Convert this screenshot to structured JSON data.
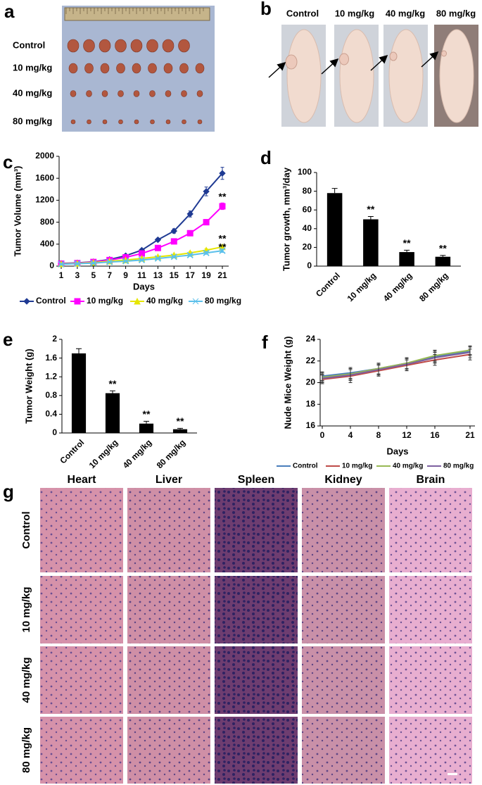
{
  "panel_a": {
    "label": "a",
    "rows": [
      "Control",
      "10 mg/kg",
      "40 mg/kg",
      "80 mg/kg"
    ]
  },
  "panel_b": {
    "label": "b",
    "columns": [
      "Control",
      "10 mg/kg",
      "40 mg/kg",
      "80 mg/kg"
    ]
  },
  "chart_data": [
    {
      "panel": "c",
      "type": "line",
      "x_label": "Days",
      "y_label": "Tumor Volume (mm³)",
      "legend": "bottom",
      "x": [
        1,
        3,
        5,
        7,
        9,
        11,
        13,
        15,
        17,
        19,
        21
      ],
      "xlim": [
        1,
        21
      ],
      "xticks": [
        1,
        3,
        5,
        7,
        9,
        11,
        13,
        15,
        17,
        19,
        21
      ],
      "ylim": [
        0,
        2000
      ],
      "yticks": [
        0,
        400,
        800,
        1200,
        1600,
        2000
      ],
      "series": [
        {
          "name": "Control",
          "color": "#1f3a93",
          "marker": "diamond",
          "values": [
            50,
            60,
            80,
            120,
            190,
            290,
            480,
            640,
            950,
            1360,
            1690
          ],
          "errors": [
            8,
            8,
            10,
            12,
            18,
            22,
            28,
            40,
            55,
            80,
            110
          ]
        },
        {
          "name": "10 mg/kg",
          "color": "#ff00ff",
          "marker": "square",
          "values": [
            45,
            55,
            75,
            110,
            160,
            230,
            330,
            450,
            600,
            800,
            1090
          ],
          "errors": [
            6,
            6,
            8,
            10,
            14,
            18,
            22,
            30,
            40,
            50,
            60
          ],
          "significance": "**"
        },
        {
          "name": "40 mg/kg",
          "color": "#e6e600",
          "marker": "triangle",
          "values": [
            40,
            50,
            65,
            90,
            110,
            140,
            170,
            200,
            240,
            290,
            350
          ],
          "errors": [
            5,
            5,
            6,
            8,
            10,
            12,
            15,
            18,
            22,
            28,
            35
          ],
          "significance": "**"
        },
        {
          "name": "80 mg/kg",
          "color": "#5bc0eb",
          "marker": "cross",
          "values": [
            35,
            45,
            55,
            75,
            90,
            110,
            140,
            170,
            200,
            240,
            280
          ],
          "errors": [
            5,
            5,
            6,
            8,
            10,
            12,
            15,
            18,
            22,
            26,
            30
          ],
          "significance": "**"
        }
      ]
    },
    {
      "panel": "d",
      "type": "bar",
      "y_label": "Tumor growth, mm³/day",
      "color": "#000000",
      "categories": [
        "Control",
        "10 mg/kg",
        "40 mg/kg",
        "80 mg/kg"
      ],
      "values": [
        78,
        50,
        15,
        10
      ],
      "errors": [
        5,
        3,
        2,
        1.5
      ],
      "significance": [
        null,
        "**",
        "**",
        "**"
      ],
      "ylim": [
        0,
        100
      ],
      "yticks": [
        0,
        20,
        40,
        60,
        80,
        100
      ]
    },
    {
      "panel": "e",
      "type": "bar",
      "y_label": "Tumor Weight  (g)",
      "color": "#000000",
      "categories": [
        "Control",
        "10 mg/kg",
        "40 mg/kg",
        "80 mg/kg"
      ],
      "values": [
        1.7,
        0.85,
        0.2,
        0.08
      ],
      "errors": [
        0.1,
        0.05,
        0.05,
        0.02
      ],
      "significance": [
        null,
        "**",
        "**",
        "**"
      ],
      "ylim": [
        0,
        2
      ],
      "yticks": [
        0,
        0.4,
        0.8,
        1.2,
        1.6,
        2
      ]
    },
    {
      "panel": "f",
      "type": "line",
      "x_label": "Days",
      "y_label": "Nude Mice Weight (g)",
      "legend": "bottom",
      "x": [
        0,
        4,
        8,
        12,
        16,
        21
      ],
      "xlim": [
        0,
        21
      ],
      "xticks": [
        0,
        4,
        8,
        12,
        16,
        21
      ],
      "ylim": [
        16,
        24
      ],
      "yticks": [
        16,
        18,
        20,
        22,
        24
      ],
      "series": [
        {
          "name": "Control",
          "color": "#4a7ebb",
          "values": [
            20.6,
            20.9,
            21.3,
            21.8,
            22.4,
            22.9
          ],
          "errors": [
            0.4,
            0.5,
            0.5,
            0.5,
            0.5,
            0.4
          ]
        },
        {
          "name": "10 mg/kg",
          "color": "#be4b48",
          "values": [
            20.3,
            20.6,
            21.1,
            21.6,
            22.1,
            22.6
          ],
          "errors": [
            0.4,
            0.6,
            0.5,
            0.5,
            0.5,
            0.5
          ]
        },
        {
          "name": "40 mg/kg",
          "color": "#98b954",
          "values": [
            20.5,
            20.8,
            21.3,
            21.8,
            22.5,
            23.0
          ],
          "errors": [
            0.4,
            0.5,
            0.5,
            0.5,
            0.5,
            0.4
          ]
        },
        {
          "name": "80 mg/kg",
          "color": "#7d60a0",
          "values": [
            20.4,
            20.7,
            21.2,
            21.7,
            22.3,
            22.8
          ],
          "errors": [
            0.4,
            0.5,
            0.5,
            0.5,
            0.5,
            0.5
          ]
        }
      ]
    }
  ],
  "panel_g": {
    "label": "g",
    "columns": [
      "Heart",
      "Liver",
      "Spleen",
      "Kidney",
      "Brain"
    ],
    "rows": [
      "Control",
      "10 mg/kg",
      "40 mg/kg",
      "80 mg/kg"
    ]
  }
}
